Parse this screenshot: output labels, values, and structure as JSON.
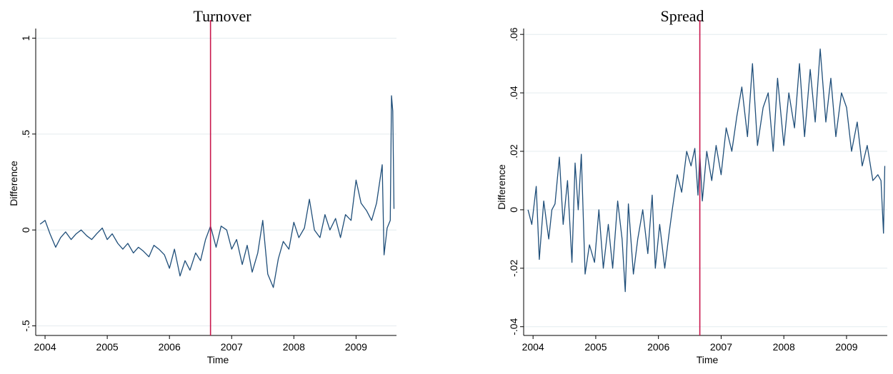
{
  "chart_data": [
    {
      "type": "line",
      "title": "Turnover",
      "xlabel": "Time",
      "ylabel": "Difference",
      "xlim": [
        2003.85,
        2009.65
      ],
      "ylim": [
        -0.55,
        1.05
      ],
      "xticks": [
        2004,
        2005,
        2006,
        2007,
        2008,
        2009
      ],
      "xtick_labels": [
        "2004",
        "2005",
        "2006",
        "2007",
        "2008",
        "2009"
      ],
      "yticks": [
        -0.5,
        0,
        0.5,
        1
      ],
      "ytick_labels": [
        "-.5",
        "0",
        ".5",
        "1"
      ],
      "grid": true,
      "vline": 2006.66,
      "colors": {
        "series": "#1f4e79",
        "vline": "#c8174d",
        "grid": "#e4ecef"
      },
      "series": [
        {
          "x": [
            2003.92,
            2004.0,
            2004.08,
            2004.17,
            2004.25,
            2004.33,
            2004.42,
            2004.5,
            2004.58,
            2004.67,
            2004.75,
            2004.83,
            2004.92,
            2005.0,
            2005.08,
            2005.17,
            2005.25,
            2005.33,
            2005.42,
            2005.5,
            2005.58,
            2005.67,
            2005.75,
            2005.83,
            2005.92,
            2006.0,
            2006.08,
            2006.17,
            2006.25,
            2006.33,
            2006.42,
            2006.5,
            2006.58,
            2006.66,
            2006.75,
            2006.83,
            2006.92,
            2007.0,
            2007.08,
            2007.17,
            2007.25,
            2007.33,
            2007.42,
            2007.5,
            2007.58,
            2007.67,
            2007.75,
            2007.83,
            2007.92,
            2008.0,
            2008.08,
            2008.17,
            2008.25,
            2008.33,
            2008.42,
            2008.5,
            2008.58,
            2008.67,
            2008.75,
            2008.83,
            2008.92,
            2009.0,
            2009.08,
            2009.17,
            2009.25,
            2009.33,
            2009.42,
            2009.45,
            2009.5,
            2009.55,
            2009.57,
            2009.59,
            2009.61
          ],
          "y": [
            0.03,
            0.05,
            -0.02,
            -0.09,
            -0.04,
            -0.01,
            -0.05,
            -0.02,
            0.0,
            -0.03,
            -0.05,
            -0.02,
            0.01,
            -0.05,
            -0.02,
            -0.07,
            -0.1,
            -0.07,
            -0.12,
            -0.09,
            -0.11,
            -0.14,
            -0.08,
            -0.1,
            -0.13,
            -0.2,
            -0.1,
            -0.24,
            -0.16,
            -0.21,
            -0.12,
            -0.16,
            -0.05,
            0.02,
            -0.09,
            0.02,
            0.0,
            -0.1,
            -0.05,
            -0.18,
            -0.08,
            -0.22,
            -0.12,
            0.05,
            -0.23,
            -0.3,
            -0.15,
            -0.06,
            -0.1,
            0.04,
            -0.04,
            0.01,
            0.16,
            0.0,
            -0.04,
            0.08,
            0.0,
            0.06,
            -0.04,
            0.08,
            0.05,
            0.26,
            0.14,
            0.1,
            0.05,
            0.14,
            0.34,
            -0.13,
            0.01,
            0.05,
            0.7,
            0.62,
            0.11
          ]
        }
      ]
    },
    {
      "type": "line",
      "title": "Spread",
      "xlabel": "Time",
      "ylabel": "Difference",
      "xlim": [
        2003.85,
        2009.65
      ],
      "ylim": [
        -0.043,
        0.062
      ],
      "xticks": [
        2004,
        2005,
        2006,
        2007,
        2008,
        2009
      ],
      "xtick_labels": [
        "2004",
        "2005",
        "2006",
        "2007",
        "2008",
        "2009"
      ],
      "yticks": [
        -0.04,
        -0.02,
        0,
        0.02,
        0.04,
        0.06
      ],
      "ytick_labels": [
        "-.04",
        "-.02",
        "0",
        ".02",
        ".04",
        ".06"
      ],
      "grid": true,
      "vline": 2006.66,
      "colors": {
        "series": "#1f4e79",
        "vline": "#c8174d",
        "grid": "#e4ecef"
      },
      "series": [
        {
          "x": [
            2003.92,
            2003.98,
            2004.05,
            2004.1,
            2004.17,
            2004.25,
            2004.3,
            2004.35,
            2004.42,
            2004.48,
            2004.55,
            2004.62,
            2004.67,
            2004.72,
            2004.77,
            2004.83,
            2004.9,
            2004.98,
            2005.05,
            2005.12,
            2005.2,
            2005.27,
            2005.35,
            2005.42,
            2005.47,
            2005.52,
            2005.6,
            2005.67,
            2005.75,
            2005.83,
            2005.9,
            2005.95,
            2006.02,
            2006.1,
            2006.17,
            2006.22,
            2006.3,
            2006.37,
            2006.45,
            2006.52,
            2006.58,
            2006.63,
            2006.66,
            2006.7,
            2006.77,
            2006.85,
            2006.92,
            2007.0,
            2007.08,
            2007.17,
            2007.25,
            2007.33,
            2007.42,
            2007.5,
            2007.58,
            2007.67,
            2007.75,
            2007.83,
            2007.9,
            2008.0,
            2008.08,
            2008.17,
            2008.25,
            2008.33,
            2008.42,
            2008.5,
            2008.58,
            2008.67,
            2008.75,
            2008.83,
            2008.92,
            2009.0,
            2009.08,
            2009.17,
            2009.25,
            2009.33,
            2009.42,
            2009.5,
            2009.55,
            2009.59,
            2009.61
          ],
          "y": [
            0.0,
            -0.005,
            0.008,
            -0.017,
            0.003,
            -0.01,
            0.0,
            0.002,
            0.018,
            -0.005,
            0.01,
            -0.018,
            0.016,
            0.0,
            0.019,
            -0.022,
            -0.012,
            -0.018,
            0.0,
            -0.02,
            -0.005,
            -0.02,
            0.003,
            -0.01,
            -0.028,
            0.002,
            -0.022,
            -0.01,
            0.0,
            -0.015,
            0.005,
            -0.02,
            -0.005,
            -0.02,
            -0.008,
            0.0,
            0.012,
            0.006,
            0.02,
            0.015,
            0.021,
            0.005,
            0.019,
            0.003,
            0.02,
            0.01,
            0.022,
            0.012,
            0.028,
            0.02,
            0.032,
            0.042,
            0.025,
            0.05,
            0.022,
            0.035,
            0.04,
            0.02,
            0.045,
            0.022,
            0.04,
            0.028,
            0.05,
            0.025,
            0.048,
            0.03,
            0.055,
            0.03,
            0.045,
            0.025,
            0.04,
            0.035,
            0.02,
            0.03,
            0.015,
            0.022,
            0.01,
            0.012,
            0.01,
            -0.008,
            0.015
          ]
        }
      ]
    }
  ]
}
